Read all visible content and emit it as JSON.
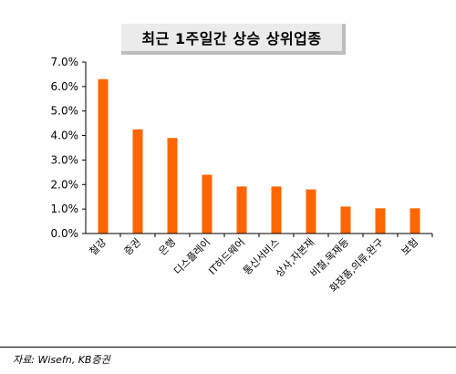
{
  "chart_data": {
    "type": "bar",
    "title": "최근 1주일간 상승 상위업종",
    "categories": [
      "철강",
      "증권",
      "은행",
      "디스플레이",
      "IT하드웨어",
      "통신서비스",
      "상사,자본재",
      "비철,목재등",
      "화장품,의류,완구",
      "보험"
    ],
    "values": [
      6.3,
      4.25,
      3.9,
      2.4,
      1.92,
      1.92,
      1.8,
      1.1,
      1.03,
      1.03
    ],
    "ylim": [
      0,
      7
    ],
    "yticks": [
      "0.0%",
      "1.0%",
      "2.0%",
      "3.0%",
      "4.0%",
      "5.0%",
      "6.0%",
      "7.0%"
    ],
    "xlabel": "",
    "ylabel": "",
    "grid": false,
    "bar_color": "#ff6600"
  },
  "source": "자료: Wisefn, KB증권"
}
